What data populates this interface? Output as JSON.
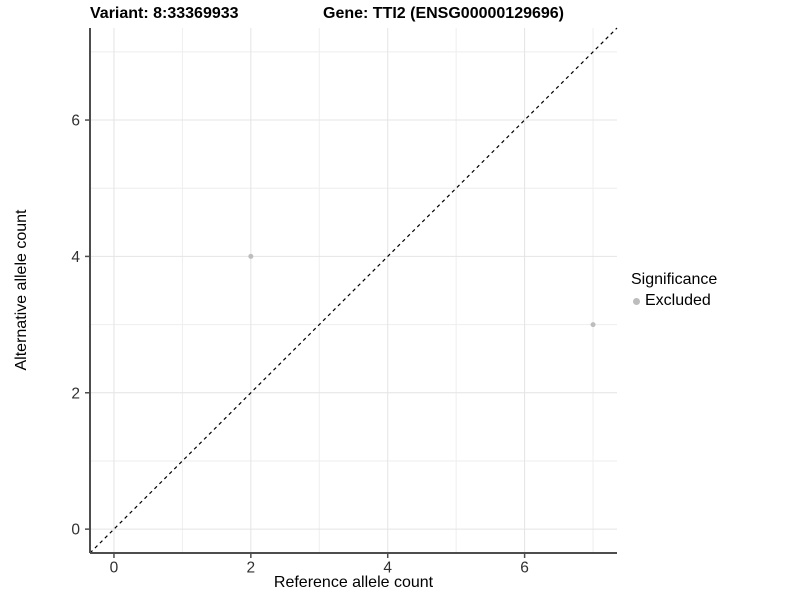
{
  "chart_data": {
    "type": "scatter",
    "title_left": "Variant: 8:33369933",
    "title_right": "Gene: TTI2 (ENSG00000129696)",
    "xlabel": "Reference allele count",
    "ylabel": "Alternative allele count",
    "xlim": [
      -0.35,
      7.35
    ],
    "ylim": [
      -0.35,
      7.35
    ],
    "xticks": [
      0,
      2,
      4,
      6
    ],
    "yticks": [
      0,
      2,
      4,
      6
    ],
    "xticks_minor": [
      1,
      3,
      5,
      7
    ],
    "yticks_minor": [
      1,
      3,
      5,
      7
    ],
    "grid": "on",
    "points": [
      {
        "x": 2,
        "y": 4,
        "significance": "Excluded"
      },
      {
        "x": 7,
        "y": 3,
        "significance": "Excluded"
      }
    ],
    "reference_line": {
      "slope": 1,
      "intercept": 0,
      "style": "dashed",
      "color": "#000000"
    },
    "legend": {
      "position": "right",
      "title": "Significance",
      "entries": [
        {
          "label": "Excluded",
          "color": "#bdbdbd"
        }
      ]
    },
    "colors": {
      "background": "#ffffff",
      "grid_major": "#e4e4e4",
      "grid_minor": "#eeeeee",
      "axis_line": "#4d4d4d",
      "tick_mark": "#4d4d4d",
      "tick_label": "#303030",
      "point": "#bdbdbd"
    }
  }
}
